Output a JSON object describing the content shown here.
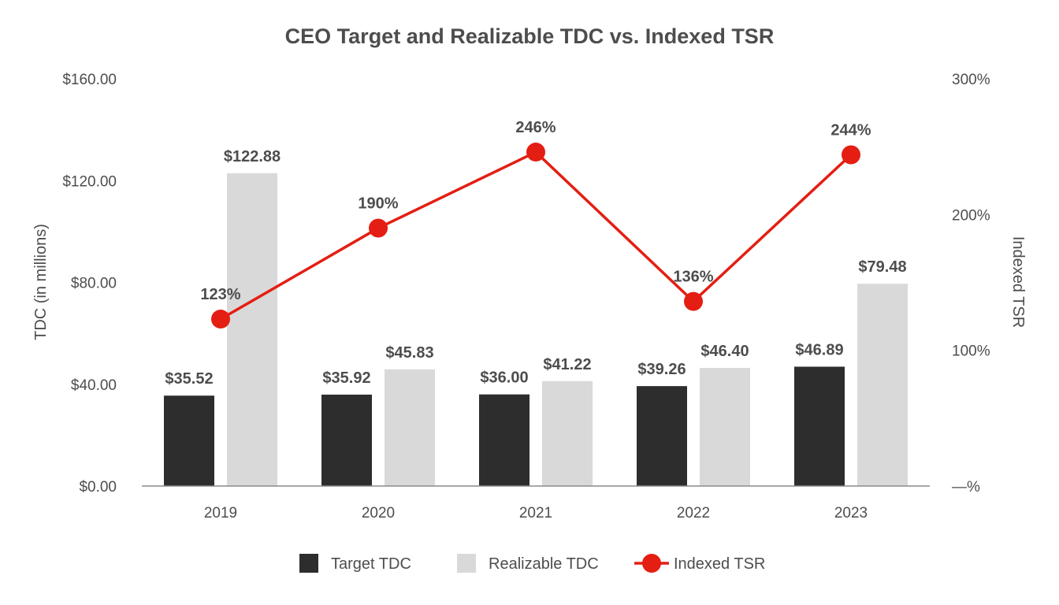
{
  "chart_data": {
    "type": "bar",
    "title": "CEO Target and Realizable TDC vs. Indexed TSR",
    "categories": [
      "2019",
      "2020",
      "2021",
      "2022",
      "2023"
    ],
    "series": [
      {
        "name": "Target TDC",
        "kind": "bar",
        "axis": "left",
        "color": "#2d2d2d",
        "values": [
          35.52,
          35.92,
          36.0,
          39.26,
          46.89
        ],
        "labels": [
          "$35.52",
          "$35.92",
          "$36.00",
          "$39.26",
          "$46.89"
        ]
      },
      {
        "name": "Realizable TDC",
        "kind": "bar",
        "axis": "left",
        "color": "#d9d9d9",
        "values": [
          122.88,
          45.83,
          41.22,
          46.4,
          79.48
        ],
        "labels": [
          "$122.88",
          "$45.83",
          "$41.22",
          "$46.40",
          "$79.48"
        ]
      },
      {
        "name": "Indexed TSR",
        "kind": "line",
        "axis": "right",
        "color": "#e41e13",
        "values": [
          123,
          190,
          246,
          136,
          244
        ],
        "labels": [
          "123%",
          "190%",
          "246%",
          "136%",
          "244%"
        ]
      }
    ],
    "ylabel": "TDC (in millions)",
    "ylabel_right": "Indexed TSR",
    "ylim": [
      0,
      160
    ],
    "ylim_right": [
      0,
      300
    ],
    "yticks": [
      0,
      40,
      80,
      120,
      160
    ],
    "ytick_labels": [
      "$0.00",
      "$40.00",
      "$80.00",
      "$120.00",
      "$160.00"
    ],
    "yticks_right": [
      0,
      100,
      200,
      300
    ],
    "ytick_labels_right": [
      "—%",
      "100%",
      "200%",
      "300%"
    ],
    "grid": false,
    "legend_position": "bottom-center"
  }
}
